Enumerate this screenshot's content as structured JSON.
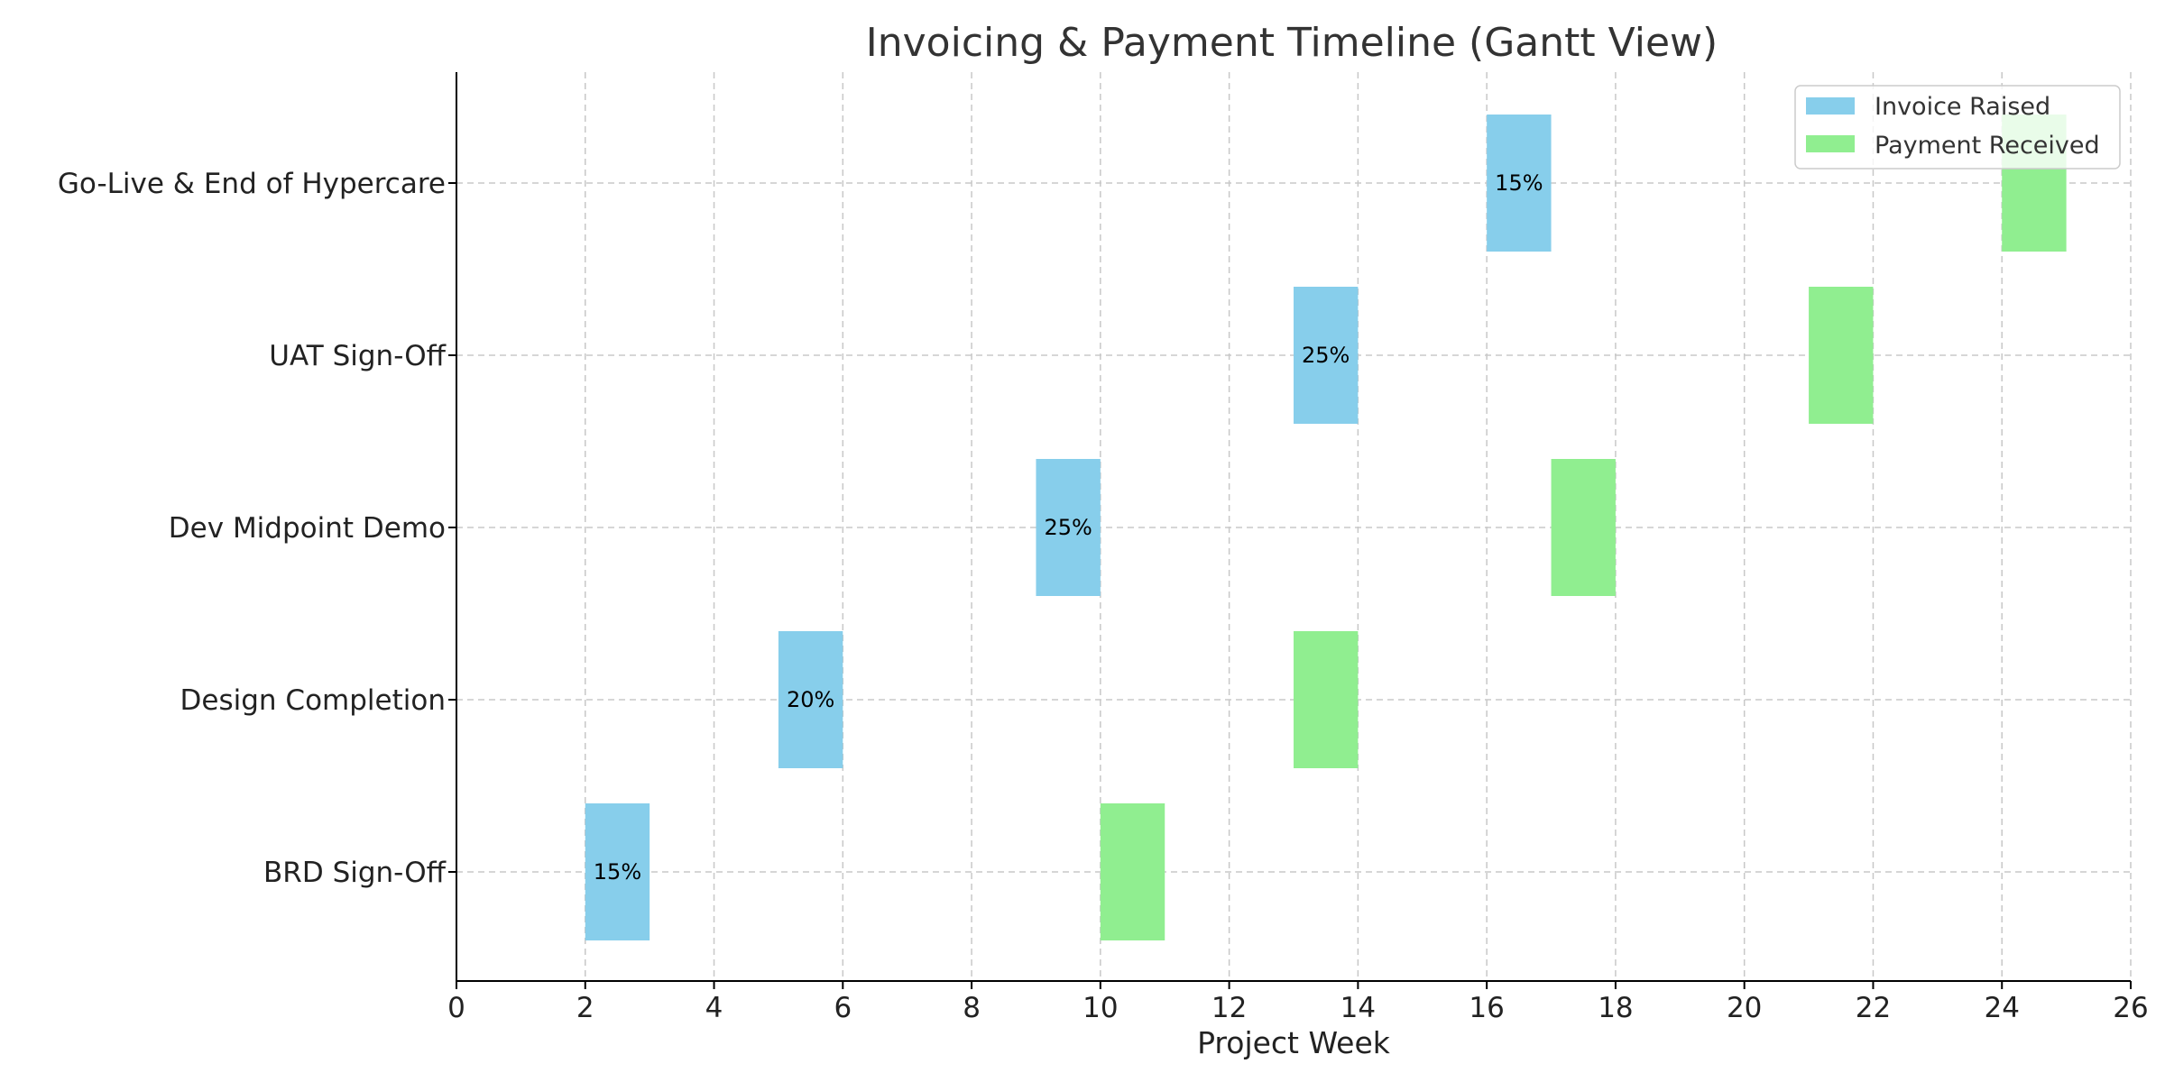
{
  "chart_data": {
    "type": "bar",
    "orientation": "horizontal-gantt",
    "title": "Invoicing & Payment Timeline (Gantt View)",
    "xlabel": "Project Week",
    "ylabel": "",
    "xlim": [
      0,
      26
    ],
    "xticks": [
      0,
      2,
      4,
      6,
      8,
      10,
      12,
      14,
      16,
      18,
      20,
      22,
      24,
      26
    ],
    "grid": true,
    "legend_position": "top-right",
    "categories": [
      "BRD Sign-Off",
      "Design Completion",
      "Dev Midpoint Demo",
      "UAT Sign-Off",
      "Go-Live & End of Hypercare"
    ],
    "series": [
      {
        "name": "Invoice Raised",
        "color": "#87CEEB",
        "tasks": [
          {
            "start": 2,
            "end": 3,
            "label": "15%"
          },
          {
            "start": 5,
            "end": 6,
            "label": "20%"
          },
          {
            "start": 9,
            "end": 10,
            "label": "25%"
          },
          {
            "start": 13,
            "end": 14,
            "label": "25%"
          },
          {
            "start": 16,
            "end": 17,
            "label": "15%"
          }
        ]
      },
      {
        "name": "Payment Received",
        "color": "#90EE90",
        "tasks": [
          {
            "start": 10,
            "end": 11
          },
          {
            "start": 13,
            "end": 14
          },
          {
            "start": 17,
            "end": 18
          },
          {
            "start": 21,
            "end": 22
          },
          {
            "start": 24,
            "end": 25
          }
        ]
      }
    ]
  }
}
